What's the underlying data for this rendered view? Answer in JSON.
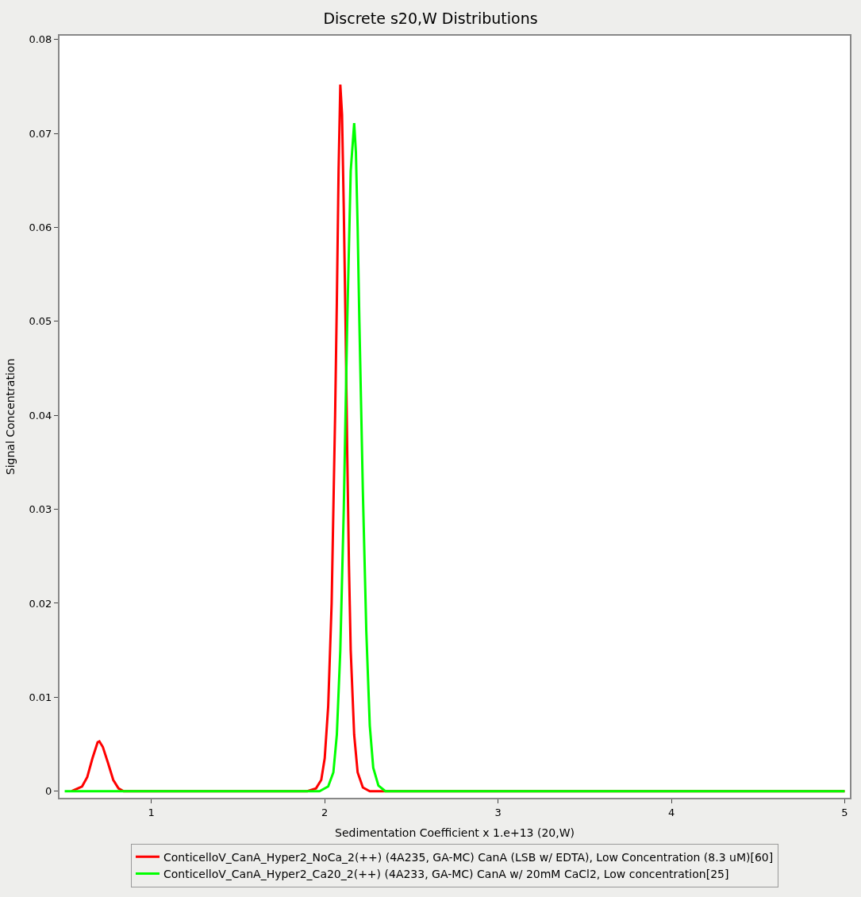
{
  "chart_data": {
    "type": "line",
    "title": "Discrete s20,W Distributions",
    "xlabel": "Sedimentation Coefficient x 1.e+13 (20,W)",
    "ylabel": "Signal Concentration",
    "xlim": [
      0.47,
      5.03
    ],
    "ylim": [
      -0.0007,
      0.0804
    ],
    "xticks": [
      1,
      2,
      3,
      4,
      5
    ],
    "yticks": [
      0,
      0.01,
      0.02,
      0.03,
      0.04,
      0.05,
      0.06,
      0.07,
      0.08
    ],
    "legend": "bottom",
    "marker": "none",
    "line_style": "solid",
    "series": [
      {
        "name": "ConticelloV_CanA_Hyper2_NoCa_2(++) (4A235, GA-MC) CanA (LSB w/ EDTA), Low Concentration (8.3 uM)[60]",
        "color": "#ff0000",
        "x": [
          0.54,
          0.6,
          0.63,
          0.66,
          0.69,
          0.7,
          0.72,
          0.75,
          0.78,
          0.81,
          0.84,
          1.9,
          1.95,
          1.98,
          2.0,
          2.02,
          2.04,
          2.06,
          2.07,
          2.08,
          2.09,
          2.1,
          2.11,
          2.12,
          2.13,
          2.14,
          2.15,
          2.17,
          2.19,
          2.22,
          2.26,
          5.0
        ],
        "values": [
          0,
          0.0005,
          0.0015,
          0.0035,
          0.0052,
          0.0053,
          0.0047,
          0.003,
          0.0012,
          0.0003,
          0,
          0,
          0.0003,
          0.0012,
          0.0035,
          0.009,
          0.02,
          0.04,
          0.052,
          0.066,
          0.0752,
          0.072,
          0.062,
          0.05,
          0.036,
          0.024,
          0.015,
          0.006,
          0.002,
          0.0004,
          0,
          0
        ]
      },
      {
        "name": "ConticelloV_CanA_Hyper2_Ca20_2(++) (4A233, GA-MC) CanA w/ 20mM CaCl2, Low concentration[25]",
        "color": "#00ff00",
        "x": [
          0.5,
          1.97,
          2.02,
          2.05,
          2.07,
          2.09,
          2.11,
          2.13,
          2.15,
          2.17,
          2.18,
          2.19,
          2.2,
          2.22,
          2.24,
          2.26,
          2.28,
          2.31,
          2.35,
          5.0
        ],
        "values": [
          0,
          0,
          0.0005,
          0.002,
          0.006,
          0.015,
          0.03,
          0.05,
          0.066,
          0.0711,
          0.068,
          0.06,
          0.05,
          0.032,
          0.017,
          0.007,
          0.0025,
          0.0006,
          0,
          0
        ]
      }
    ]
  }
}
